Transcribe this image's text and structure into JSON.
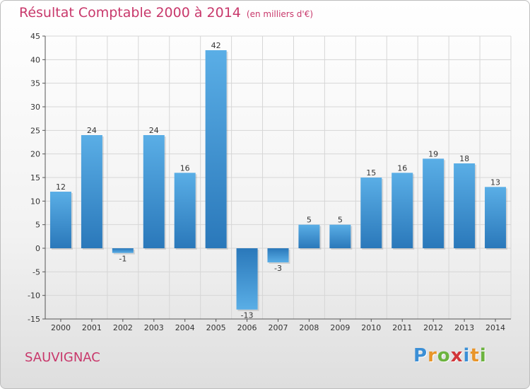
{
  "title": "Résultat Comptable 2000 à 2014",
  "subtitle": "(en milliers d'€)",
  "commune": "SAUVIGNAC",
  "logo": {
    "text": "Proxiti",
    "letters": [
      {
        "ch": "P",
        "color": "#3b8fd6"
      },
      {
        "ch": "r",
        "color": "#e8952a"
      },
      {
        "ch": "o",
        "color": "#6cb33f"
      },
      {
        "ch": "x",
        "color": "#d2363a"
      },
      {
        "ch": "i",
        "color": "#3b8fd6"
      },
      {
        "ch": "t",
        "color": "#e8952a"
      },
      {
        "ch": "i",
        "color": "#6cb33f"
      }
    ]
  },
  "colors": {
    "title": "#c8386b",
    "bar_light": "#5aaee6",
    "bar_dark": "#2a78ba",
    "grid": "#d6d6d6"
  },
  "chart_data": {
    "type": "bar",
    "title": "Résultat Comptable 2000 à 2014",
    "subtitle": "(en milliers d'€)",
    "categories": [
      "2000",
      "2001",
      "2002",
      "2003",
      "2004",
      "2005",
      "2006",
      "2007",
      "2008",
      "2009",
      "2010",
      "2011",
      "2012",
      "2013",
      "2014"
    ],
    "values": [
      12,
      24,
      -1,
      24,
      16,
      42,
      -13,
      -3,
      5,
      5,
      15,
      16,
      19,
      18,
      13
    ],
    "value_labels": [
      "12",
      "24",
      "-1",
      "24",
      "16",
      "42",
      "-13",
      "-3",
      "5",
      "5",
      "15",
      "16",
      "19",
      "18",
      "13"
    ],
    "yticks": [
      -15,
      -10,
      -5,
      0,
      5,
      10,
      15,
      20,
      25,
      30,
      35,
      40,
      45
    ],
    "ytick_labels": [
      "-15",
      "-10",
      "-5",
      "0",
      "5",
      "10",
      "15",
      "20",
      "25",
      "30",
      "35",
      "40",
      "45"
    ],
    "ylim": [
      -15,
      45
    ],
    "xlabel": "",
    "ylabel": "",
    "grid": true
  }
}
